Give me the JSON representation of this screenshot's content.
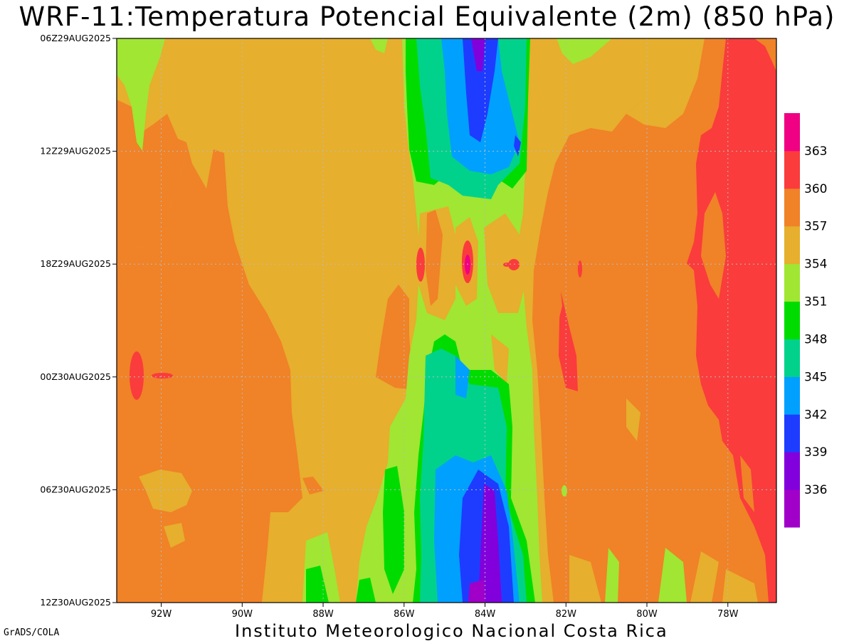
{
  "title": "WRF-11:Temperatura Potencial Equivalente (2m) (850 hPa)",
  "footer": "Instituto Meteorologico Nacional Costa Rica",
  "credit": "GrADS/COLA",
  "chart_data": {
    "type": "heatmap",
    "title": "WRF-11:Temperatura Potencial Equivalente (2m) (850 hPa)",
    "x_ticks": [
      "92W",
      "90W",
      "88W",
      "86W",
      "84W",
      "82W",
      "80W",
      "78W"
    ],
    "x_tick_values_lon": [
      -92,
      -90,
      -88,
      -86,
      -84,
      -82,
      -80,
      -78
    ],
    "xlim_lon": [
      -93.1,
      -76.8
    ],
    "y_ticks": [
      "06Z29AUG2025",
      "12Z29AUG2025",
      "18Z29AUG2025",
      "00Z30AUG2025",
      "06Z30AUG2025",
      "12Z30AUG2025"
    ],
    "y_axis_order": "time increasing downward",
    "grid": true,
    "colorbar": {
      "labels": [
        336,
        339,
        342,
        345,
        348,
        351,
        354,
        357,
        360,
        363
      ],
      "colors": [
        "#a000c8",
        "#8200dc",
        "#1e3cff",
        "#00a0ff",
        "#00d28c",
        "#00dc00",
        "#a0e632",
        "#e6af2d",
        "#f08228",
        "#fa3c3c",
        "#f00082"
      ]
    },
    "field_colors": {
      "c336": "#a000c8",
      "c339": "#8200dc",
      "c342": "#1e3cff",
      "c345": "#00a0ff",
      "c348": "#00d28c",
      "c351": "#00dc00",
      "c354": "#a0e632",
      "c357": "#e6af2d",
      "c360": "#f08228",
      "c363": "#fa3c3c",
      "c366": "#f00082"
    }
  }
}
